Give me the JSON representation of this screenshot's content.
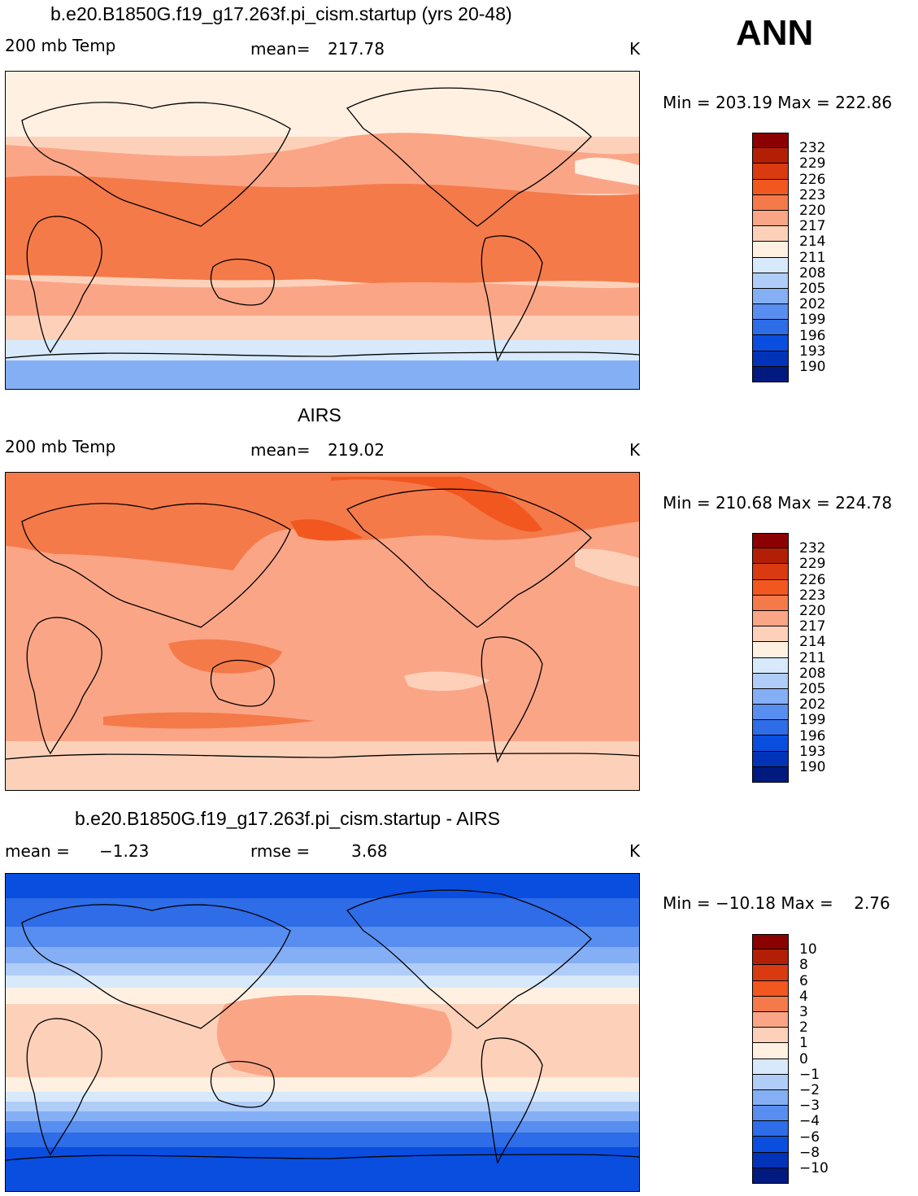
{
  "season": "ANN",
  "units": "K",
  "panels": [
    {
      "title": "b.e20.B1850G.f19_g17.263f.pi_cism.startup (yrs 20-48)",
      "variable": "200 mb Temp",
      "stat_left": "mean=",
      "stat_left_value": "217.78",
      "stat_right": "",
      "stat_right_value": "",
      "units": "K",
      "minmax": "Min = 203.19 Max = 222.86",
      "colorbar": {
        "labels": [
          "232",
          "229",
          "226",
          "223",
          "220",
          "217",
          "214",
          "211",
          "208",
          "205",
          "202",
          "199",
          "196",
          "193",
          "190"
        ],
        "colors": [
          "#8b0000",
          "#b31f05",
          "#d93a10",
          "#f1571f",
          "#f57a49",
          "#fba587",
          "#fdd1b9",
          "#fff0e1",
          "#d7e9fb",
          "#b0cdf8",
          "#85aff5",
          "#578ef0",
          "#2e6ce8",
          "#0a4ee0",
          "#0033b8",
          "#001a80"
        ]
      },
      "map_style": "model"
    },
    {
      "title": "AIRS",
      "variable": "200 mb Temp",
      "stat_left": "mean=",
      "stat_left_value": "219.02",
      "stat_right": "",
      "stat_right_value": "",
      "units": "K",
      "minmax": "Min = 210.68 Max = 224.78",
      "colorbar": {
        "labels": [
          "232",
          "229",
          "226",
          "223",
          "220",
          "217",
          "214",
          "211",
          "208",
          "205",
          "202",
          "199",
          "196",
          "193",
          "190"
        ],
        "colors": [
          "#8b0000",
          "#b31f05",
          "#d93a10",
          "#f1571f",
          "#f57a49",
          "#fba587",
          "#fdd1b9",
          "#fff0e1",
          "#d7e9fb",
          "#b0cdf8",
          "#85aff5",
          "#578ef0",
          "#2e6ce8",
          "#0a4ee0",
          "#0033b8",
          "#001a80"
        ]
      },
      "map_style": "obs"
    },
    {
      "title": "b.e20.B1850G.f19_g17.263f.pi_cism.startup - AIRS",
      "variable": "",
      "stat_left": "mean =",
      "stat_left_value": "−1.23",
      "stat_right": "rmse =",
      "stat_right_value": "3.68",
      "units": "K",
      "minmax": "Min = −10.18 Max =    2.76",
      "colorbar": {
        "labels": [
          "10",
          "8",
          "6",
          "4",
          "3",
          "2",
          "1",
          "0",
          "−1",
          "−2",
          "−3",
          "−4",
          "−6",
          "−8",
          "−10"
        ],
        "colors": [
          "#8b0000",
          "#b31f05",
          "#d93a10",
          "#f1571f",
          "#f57a49",
          "#fba587",
          "#fdd1b9",
          "#fff0e1",
          "#d7e9fb",
          "#b0cdf8",
          "#85aff5",
          "#578ef0",
          "#2e6ce8",
          "#0a4ee0",
          "#0033b8",
          "#001a80"
        ]
      },
      "map_style": "diff"
    }
  ]
}
